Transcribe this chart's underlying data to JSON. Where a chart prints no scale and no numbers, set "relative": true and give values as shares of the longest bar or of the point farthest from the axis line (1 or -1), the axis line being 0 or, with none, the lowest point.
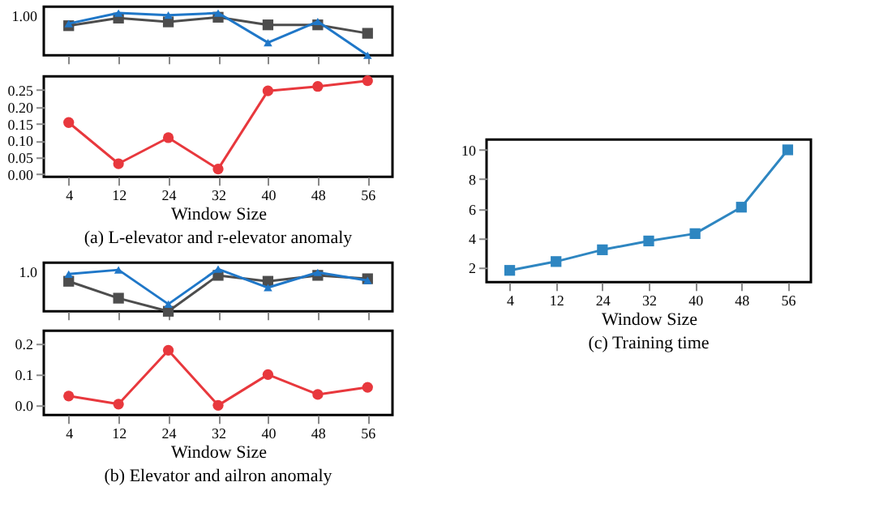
{
  "chart_data": [
    {
      "type": "line",
      "categories": [
        "4",
        "12",
        "24",
        "32",
        "40",
        "48",
        "56"
      ],
      "tick_labels": false,
      "relative": true,
      "annotations": [
        "1.00"
      ],
      "series": [
        {
          "color": "#4d4d4d",
          "marker": "square",
          "values": [
            0.7,
            0.88,
            0.79,
            0.9,
            0.72,
            0.72,
            0.52
          ]
        },
        {
          "color": "#1f77c8",
          "marker": "triangle",
          "values": [
            0.75,
            1.0,
            0.95,
            1.0,
            0.3,
            0.8,
            0.0
          ]
        }
      ]
    },
    {
      "type": "line",
      "title": "(a) L-elevator and r-elevator anomaly",
      "xlabel": "Window Size",
      "categories": [
        "4",
        "12",
        "24",
        "32",
        "40",
        "48",
        "56"
      ],
      "ylim": [
        -0.008,
        0.29
      ],
      "yticks": [
        {
          "value": 0,
          "label": "0.00"
        },
        {
          "value": 0.05,
          "label": "0.05"
        },
        {
          "value": 0.1,
          "label": "0.10"
        },
        {
          "value": 0.15,
          "label": "0.15"
        },
        {
          "value": 0.2,
          "label": "0.20"
        },
        {
          "value": 0.25,
          "label": "0.25"
        }
      ],
      "series": [
        {
          "color": "#e8383d",
          "marker": "circle",
          "values": [
            0.153,
            0.031,
            0.108,
            0.015,
            0.247,
            0.26,
            0.277
          ]
        }
      ]
    },
    {
      "type": "line",
      "categories": [
        "4",
        "12",
        "24",
        "32",
        "40",
        "48",
        "56"
      ],
      "tick_labels": false,
      "relative": true,
      "annotations": [
        "1.0"
      ],
      "series": [
        {
          "color": "#4d4d4d",
          "marker": "square",
          "values": [
            0.71,
            0.31,
            0.0,
            0.85,
            0.71,
            0.85,
            0.77
          ]
        },
        {
          "color": "#1f77c8",
          "marker": "triangle",
          "values": [
            0.88,
            0.98,
            0.17,
            1.0,
            0.56,
            0.92,
            0.73
          ]
        }
      ]
    },
    {
      "type": "line",
      "title": "(b) Elevator and ailron anomaly",
      "xlabel": "Window Size",
      "categories": [
        "4",
        "12",
        "24",
        "32",
        "40",
        "48",
        "56"
      ],
      "ylim": [
        -0.031,
        0.24
      ],
      "yticks": [
        {
          "value": 0,
          "label": "0.0"
        },
        {
          "value": 0.1,
          "label": "0.1"
        },
        {
          "value": 0.2,
          "label": "0.2"
        }
      ],
      "series": [
        {
          "color": "#e8383d",
          "marker": "circle",
          "values": [
            0.03,
            0.004,
            0.177,
            0.0,
            0.099,
            0.035,
            0.058
          ]
        }
      ]
    },
    {
      "type": "line",
      "title": "(c) Training time",
      "xlabel": "Window Size",
      "categories": [
        "4",
        "12",
        "24",
        "32",
        "40",
        "48",
        "56"
      ],
      "ylim": [
        1,
        10.7
      ],
      "yticks": [
        2,
        4,
        6,
        8,
        10
      ],
      "series": [
        {
          "color": "#2e86c1",
          "marker": "square",
          "values": [
            1.8,
            2.4,
            3.2,
            3.8,
            4.3,
            6.1,
            10.0
          ]
        }
      ]
    }
  ]
}
